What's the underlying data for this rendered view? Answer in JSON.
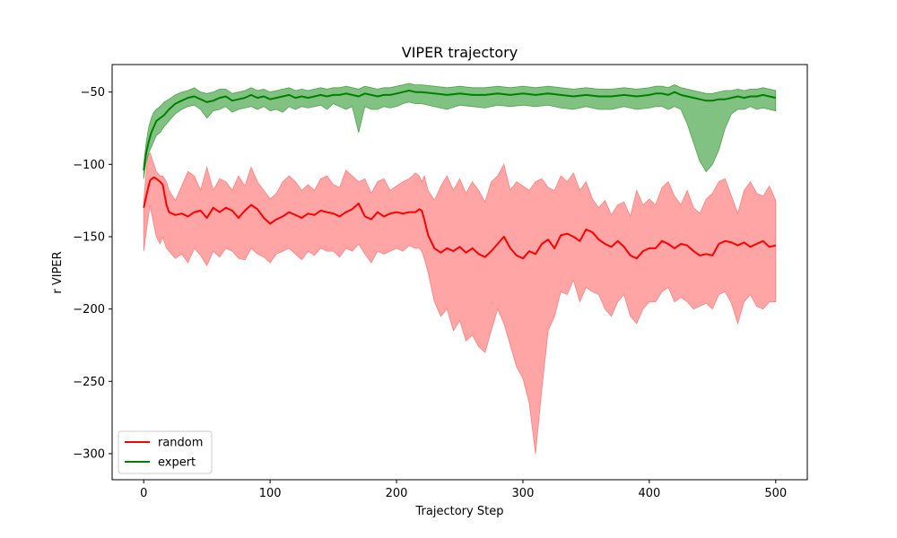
{
  "chart_data": {
    "type": "line",
    "title": "VIPER trajectory",
    "xlabel": "Trajectory Step",
    "ylabel": "r VIPER",
    "xlim": [
      -25,
      525
    ],
    "ylim": [
      -318,
      -31
    ],
    "xticks": [
      0,
      100,
      200,
      300,
      400,
      500
    ],
    "yticks": [
      -300,
      -250,
      -200,
      -150,
      -100,
      -50
    ],
    "grid": false,
    "legend_position": "lower-left",
    "series": [
      {
        "name": "random",
        "color": "#ff0000",
        "band_color": "#ff7f7f",
        "x": [
          0,
          3,
          5,
          8,
          10,
          13,
          15,
          18,
          20,
          25,
          30,
          35,
          40,
          45,
          50,
          55,
          60,
          65,
          70,
          75,
          80,
          85,
          90,
          95,
          100,
          105,
          110,
          115,
          120,
          125,
          130,
          135,
          140,
          145,
          150,
          155,
          160,
          165,
          170,
          175,
          180,
          185,
          190,
          195,
          200,
          205,
          210,
          215,
          218,
          220,
          222,
          225,
          230,
          235,
          240,
          245,
          250,
          255,
          260,
          265,
          270,
          275,
          280,
          285,
          290,
          295,
          300,
          305,
          310,
          315,
          320,
          325,
          330,
          335,
          340,
          345,
          350,
          355,
          360,
          365,
          370,
          375,
          380,
          385,
          390,
          395,
          400,
          405,
          410,
          415,
          420,
          425,
          430,
          435,
          440,
          445,
          450,
          455,
          460,
          465,
          470,
          475,
          480,
          485,
          490,
          495,
          500
        ],
        "mean": [
          -130,
          -118,
          -111,
          -109,
          -110,
          -112,
          -114,
          -128,
          -133,
          -135,
          -134,
          -136,
          -133,
          -132,
          -137,
          -130,
          -133,
          -130,
          -132,
          -137,
          -132,
          -128,
          -131,
          -137,
          -141,
          -138,
          -136,
          -133,
          -135,
          -137,
          -134,
          -135,
          -132,
          -133,
          -134,
          -136,
          -133,
          -131,
          -127,
          -136,
          -138,
          -133,
          -136,
          -134,
          -133,
          -134,
          -133,
          -133,
          -131,
          -132,
          -138,
          -149,
          -158,
          -161,
          -158,
          -160,
          -157,
          -161,
          -158,
          -162,
          -164,
          -160,
          -155,
          -150,
          -158,
          -163,
          -165,
          -160,
          -162,
          -155,
          -152,
          -158,
          -149,
          -148,
          -150,
          -153,
          -145,
          -147,
          -152,
          -155,
          -157,
          -153,
          -157,
          -163,
          -165,
          -160,
          -158,
          -158,
          -153,
          -155,
          -158,
          -155,
          -156,
          -160,
          -163,
          -162,
          -163,
          -155,
          -153,
          -154,
          -156,
          -154,
          -157,
          -155,
          -153,
          -157,
          -156
        ],
        "upper": [
          -125,
          -95,
          -92,
          -100,
          -105,
          -108,
          -108,
          -112,
          -118,
          -125,
          -115,
          -105,
          -108,
          -118,
          -102,
          -118,
          -110,
          -112,
          -118,
          -108,
          -115,
          -102,
          -112,
          -118,
          -124,
          -120,
          -112,
          -108,
          -112,
          -118,
          -114,
          -118,
          -110,
          -108,
          -114,
          -116,
          -104,
          -108,
          -112,
          -110,
          -120,
          -112,
          -110,
          -118,
          -115,
          -112,
          -110,
          -106,
          -108,
          -112,
          -108,
          -118,
          -125,
          -115,
          -108,
          -118,
          -110,
          -120,
          -112,
          -118,
          -126,
          -112,
          -108,
          -100,
          -118,
          -112,
          -115,
          -118,
          -112,
          -110,
          -116,
          -118,
          -108,
          -112,
          -106,
          -118,
          -112,
          -124,
          -130,
          -125,
          -135,
          -128,
          -126,
          -136,
          -118,
          -128,
          -124,
          -128,
          -116,
          -112,
          -122,
          -128,
          -118,
          -130,
          -134,
          -124,
          -120,
          -112,
          -110,
          -122,
          -134,
          -118,
          -112,
          -120,
          -122,
          -115,
          -125
        ],
        "lower": [
          -160,
          -140,
          -128,
          -142,
          -150,
          -155,
          -150,
          -158,
          -160,
          -165,
          -162,
          -168,
          -158,
          -163,
          -170,
          -160,
          -164,
          -158,
          -160,
          -165,
          -166,
          -158,
          -162,
          -164,
          -168,
          -162,
          -160,
          -158,
          -162,
          -166,
          -160,
          -163,
          -158,
          -160,
          -160,
          -164,
          -158,
          -160,
          -155,
          -162,
          -168,
          -160,
          -162,
          -160,
          -158,
          -160,
          -156,
          -158,
          -158,
          -160,
          -165,
          -175,
          -195,
          -205,
          -200,
          -215,
          -208,
          -222,
          -218,
          -226,
          -230,
          -215,
          -200,
          -210,
          -225,
          -240,
          -248,
          -265,
          -300,
          -255,
          -215,
          -205,
          -188,
          -190,
          -180,
          -195,
          -185,
          -188,
          -190,
          -200,
          -205,
          -195,
          -190,
          -205,
          -210,
          -200,
          -195,
          -195,
          -188,
          -185,
          -195,
          -192,
          -195,
          -200,
          -198,
          -196,
          -200,
          -190,
          -188,
          -196,
          -210,
          -195,
          -190,
          -198,
          -200,
          -195,
          -195
        ]
      },
      {
        "name": "expert",
        "color": "#008000",
        "band_color": "#4ca64c",
        "x": [
          0,
          2,
          4,
          6,
          8,
          10,
          13,
          16,
          20,
          25,
          30,
          35,
          40,
          45,
          50,
          55,
          60,
          65,
          70,
          75,
          80,
          85,
          90,
          95,
          100,
          105,
          110,
          115,
          120,
          125,
          130,
          135,
          140,
          145,
          150,
          155,
          160,
          165,
          170,
          175,
          180,
          185,
          190,
          195,
          200,
          205,
          210,
          215,
          220,
          230,
          240,
          250,
          260,
          270,
          280,
          290,
          300,
          310,
          320,
          330,
          340,
          350,
          360,
          370,
          380,
          390,
          400,
          405,
          410,
          415,
          420,
          425,
          430,
          435,
          440,
          445,
          450,
          455,
          460,
          465,
          470,
          475,
          480,
          485,
          490,
          495,
          500
        ],
        "mean": [
          -104,
          -92,
          -84,
          -78,
          -74,
          -70,
          -68,
          -66,
          -62,
          -58,
          -56,
          -54,
          -53,
          -55,
          -57,
          -56,
          -54,
          -53,
          -56,
          -55,
          -54,
          -52,
          -54,
          -53,
          -55,
          -54,
          -53,
          -52,
          -54,
          -53,
          -54,
          -53,
          -52,
          -53,
          -52,
          -52,
          -51,
          -52,
          -53,
          -51,
          -52,
          -53,
          -52,
          -52,
          -51,
          -50,
          -49,
          -50,
          -50,
          -51,
          -52,
          -51,
          -52,
          -52,
          -51,
          -52,
          -51,
          -52,
          -51,
          -52,
          -53,
          -52,
          -53,
          -53,
          -52,
          -53,
          -52,
          -51,
          -51,
          -52,
          -50,
          -52,
          -53,
          -54,
          -55,
          -56,
          -56,
          -55,
          -55,
          -54,
          -53,
          -54,
          -53,
          -53,
          -52,
          -53,
          -54
        ],
        "upper": [
          -100,
          -85,
          -74,
          -68,
          -64,
          -62,
          -60,
          -57,
          -55,
          -52,
          -50,
          -49,
          -47,
          -50,
          -51,
          -50,
          -48,
          -48,
          -51,
          -50,
          -49,
          -47,
          -49,
          -48,
          -50,
          -49,
          -48,
          -47,
          -49,
          -48,
          -49,
          -48,
          -47,
          -48,
          -47,
          -47,
          -46,
          -47,
          -48,
          -46,
          -47,
          -48,
          -47,
          -47,
          -46,
          -45,
          -44,
          -45,
          -45,
          -46,
          -47,
          -46,
          -47,
          -47,
          -46,
          -47,
          -46,
          -47,
          -46,
          -47,
          -48,
          -47,
          -48,
          -48,
          -47,
          -48,
          -47,
          -46,
          -46,
          -47,
          -45,
          -47,
          -48,
          -49,
          -50,
          -51,
          -51,
          -50,
          -49,
          -49,
          -48,
          -49,
          -48,
          -48,
          -47,
          -48,
          -49
        ],
        "lower": [
          -110,
          -98,
          -92,
          -88,
          -84,
          -80,
          -78,
          -74,
          -70,
          -65,
          -62,
          -60,
          -59,
          -62,
          -68,
          -63,
          -62,
          -60,
          -64,
          -62,
          -61,
          -60,
          -62,
          -60,
          -63,
          -62,
          -64,
          -60,
          -62,
          -60,
          -61,
          -60,
          -59,
          -62,
          -58,
          -60,
          -62,
          -60,
          -78,
          -60,
          -62,
          -62,
          -60,
          -61,
          -60,
          -58,
          -57,
          -58,
          -58,
          -60,
          -62,
          -59,
          -60,
          -61,
          -59,
          -60,
          -59,
          -60,
          -59,
          -61,
          -62,
          -60,
          -62,
          -62,
          -60,
          -62,
          -61,
          -60,
          -60,
          -62,
          -60,
          -62,
          -72,
          -85,
          -98,
          -105,
          -100,
          -90,
          -75,
          -65,
          -62,
          -62,
          -60,
          -62,
          -61,
          -62,
          -63
        ]
      }
    ]
  }
}
